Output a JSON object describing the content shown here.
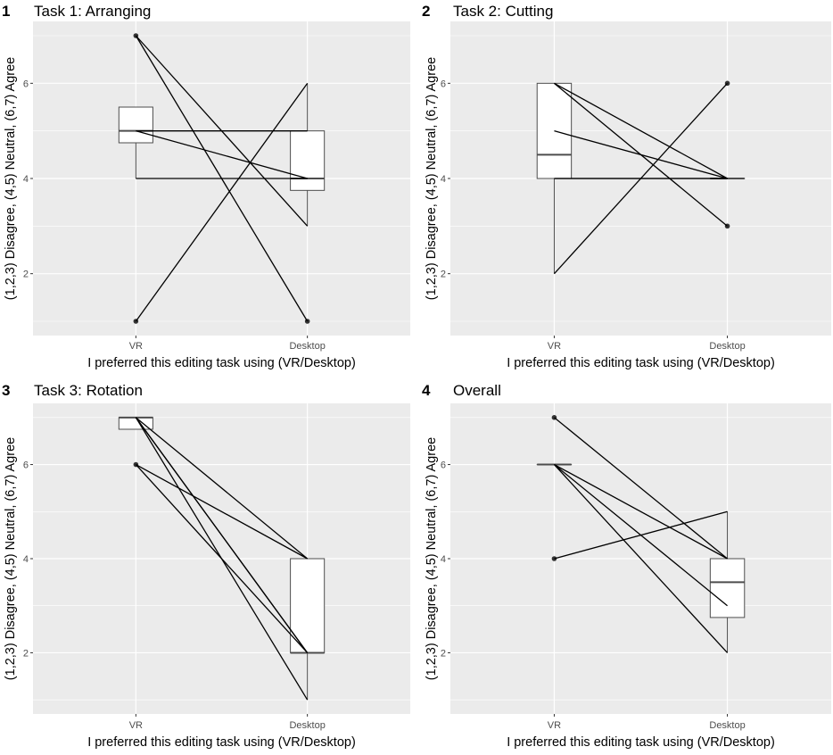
{
  "figure": {
    "y_label": "(1,2,3) Disagree, (4,5) Neutral, (6,7) Agree",
    "x_label": "I preferred this editing task using (VR/Desktop)"
  },
  "colors": {
    "panel_bg": "#ebebeb",
    "grid": "#ffffff",
    "ink": "#000000",
    "box_stroke": "#4d4d4d",
    "box_fill": "#ffffff",
    "tick_text": "#4d4d4d"
  },
  "chart_data": [
    {
      "type": "box",
      "panel_number": "1",
      "title": "Task 1: Arranging",
      "categories": [
        "VR",
        "Desktop"
      ],
      "yticks": [
        2,
        4,
        6
      ],
      "ylim": [
        0.7,
        7.3
      ],
      "boxes": [
        {
          "category": "VR",
          "min": 4,
          "q1": 4.75,
          "median": 5,
          "q3": 5.5,
          "max": 5.5,
          "outliers": [
            7,
            1
          ]
        },
        {
          "category": "Desktop",
          "min": 3,
          "q1": 3.75,
          "median": 4,
          "q3": 5,
          "max": 6,
          "outliers": [
            1
          ]
        }
      ],
      "pairs": [
        [
          7,
          1
        ],
        [
          7,
          3
        ],
        [
          5,
          4
        ],
        [
          5,
          5
        ],
        [
          4,
          4
        ],
        [
          1,
          6
        ]
      ]
    },
    {
      "type": "box",
      "panel_number": "2",
      "title": "Task 2: Cutting",
      "categories": [
        "VR",
        "Desktop"
      ],
      "yticks": [
        2,
        4,
        6
      ],
      "ylim": [
        0.7,
        7.3
      ],
      "boxes": [
        {
          "category": "VR",
          "min": 2,
          "q1": 4,
          "median": 4.5,
          "q3": 6,
          "max": 6,
          "outliers": []
        },
        {
          "category": "Desktop",
          "min": 4,
          "q1": 4,
          "median": 4,
          "q3": 4,
          "max": 4,
          "outliers": [
            6,
            3
          ]
        }
      ],
      "pairs": [
        [
          6,
          4
        ],
        [
          6,
          3
        ],
        [
          5,
          4
        ],
        [
          4,
          4
        ],
        [
          4,
          4
        ],
        [
          2,
          6
        ]
      ]
    },
    {
      "type": "box",
      "panel_number": "3",
      "title": "Task 3: Rotation",
      "categories": [
        "VR",
        "Desktop"
      ],
      "yticks": [
        2,
        4,
        6
      ],
      "ylim": [
        0.7,
        7.3
      ],
      "boxes": [
        {
          "category": "VR",
          "min": 6.75,
          "q1": 6.75,
          "median": 7,
          "q3": 7,
          "max": 7,
          "outliers": [
            6
          ]
        },
        {
          "category": "Desktop",
          "min": 1,
          "q1": 2,
          "median": 2,
          "q3": 4,
          "max": 4,
          "outliers": []
        }
      ],
      "pairs": [
        [
          7,
          4
        ],
        [
          7,
          2
        ],
        [
          7,
          2
        ],
        [
          7,
          1
        ],
        [
          6,
          4
        ],
        [
          6,
          2
        ]
      ]
    },
    {
      "type": "box",
      "panel_number": "4",
      "title": "Overall",
      "categories": [
        "VR",
        "Desktop"
      ],
      "yticks": [
        2,
        4,
        6
      ],
      "ylim": [
        0.7,
        7.3
      ],
      "boxes": [
        {
          "category": "VR",
          "min": 6,
          "q1": 6,
          "median": 6,
          "q3": 6,
          "max": 6,
          "outliers": [
            7,
            4
          ]
        },
        {
          "category": "Desktop",
          "min": 2,
          "q1": 2.75,
          "median": 3.5,
          "q3": 4,
          "max": 5,
          "outliers": []
        }
      ],
      "pairs": [
        [
          7,
          4
        ],
        [
          6,
          4
        ],
        [
          6,
          3
        ],
        [
          6,
          2
        ],
        [
          4,
          5
        ]
      ]
    }
  ]
}
